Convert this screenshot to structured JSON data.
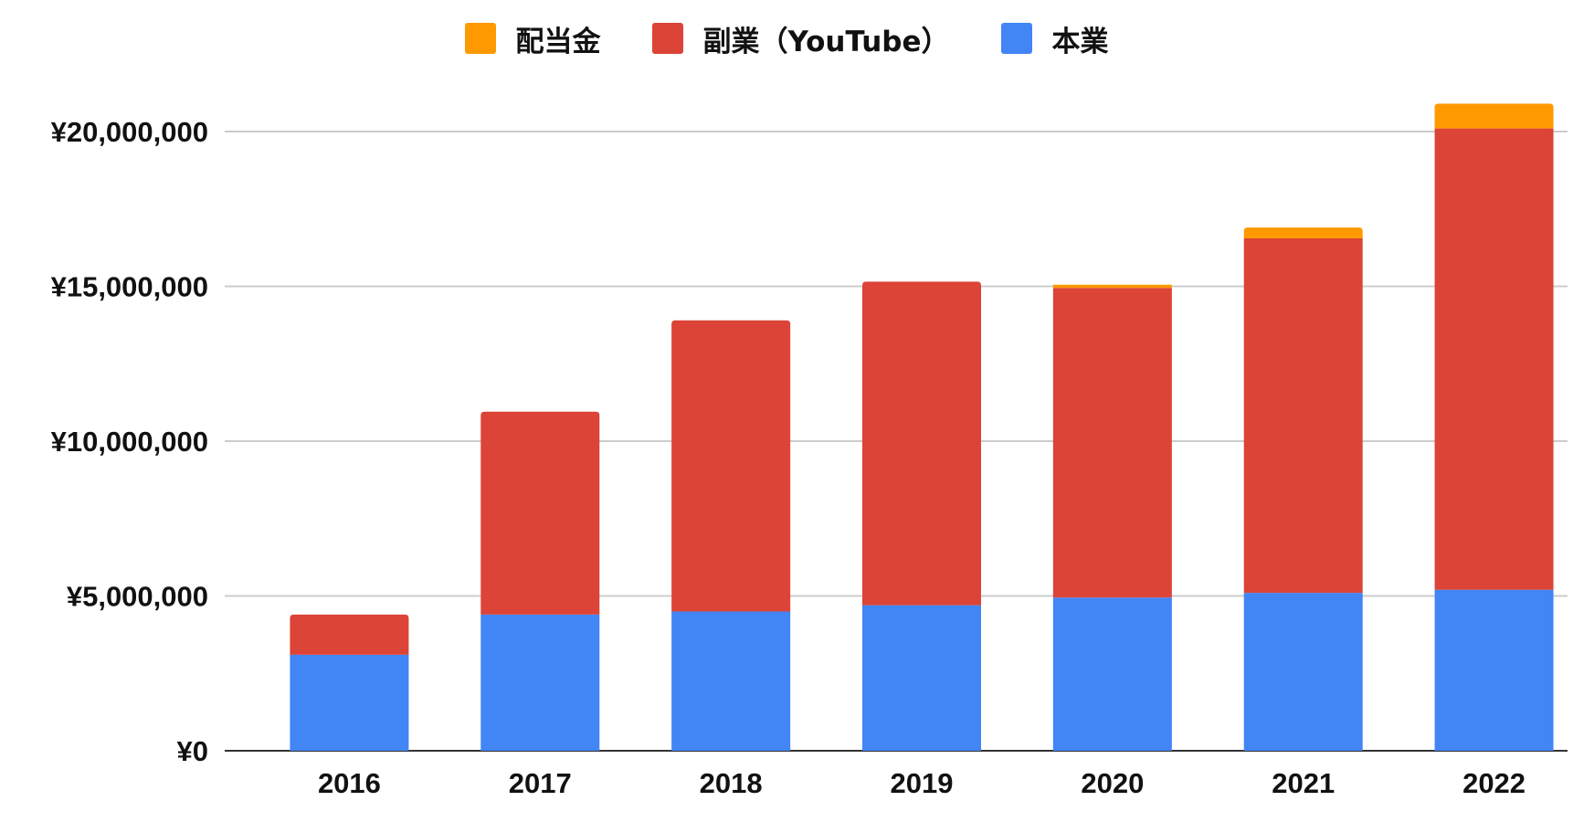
{
  "chart_data": {
    "type": "bar",
    "stacked": true,
    "title": "",
    "xlabel": "",
    "ylabel": "",
    "categories": [
      "2016",
      "2017",
      "2018",
      "2019",
      "2020",
      "2021",
      "2022"
    ],
    "series": [
      {
        "name": "本業",
        "color": "#4285F4",
        "values": [
          3100000,
          4400000,
          4500000,
          4700000,
          4950000,
          5100000,
          5200000
        ]
      },
      {
        "name": "副業（YouTube）",
        "color": "#DB4437",
        "values": [
          1300000,
          6550000,
          9400000,
          10450000,
          10000000,
          11450000,
          14900000
        ]
      },
      {
        "name": "配当金",
        "color": "#FF9900",
        "values": [
          0,
          0,
          0,
          0,
          100000,
          350000,
          800000
        ]
      }
    ],
    "legend_order": [
      "配当金",
      "副業（YouTube）",
      "本業"
    ],
    "ylim": [
      0,
      20000000
    ],
    "yticks": [
      0,
      5000000,
      10000000,
      15000000,
      20000000
    ],
    "ytick_labels": [
      "¥0",
      "¥5,000,000",
      "¥10,000,000",
      "¥15,000,000",
      "¥20,000,000"
    ],
    "grid": true,
    "legend_position": "top"
  }
}
